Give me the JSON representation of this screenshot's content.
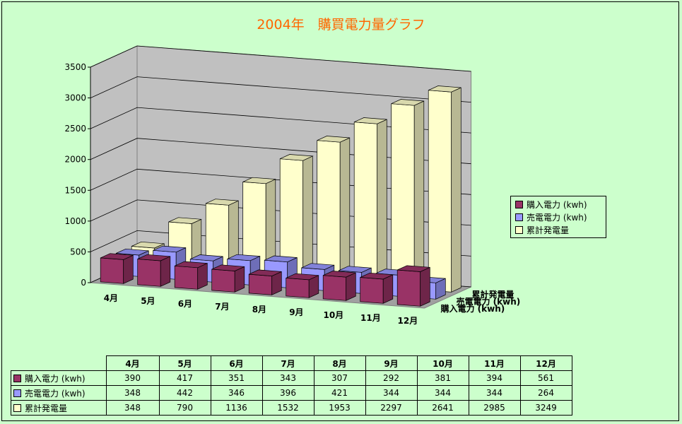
{
  "chart_data": {
    "type": "bar",
    "title": "2004年　購買電力量グラフ",
    "categories": [
      "4月",
      "5月",
      "6月",
      "7月",
      "8月",
      "9月",
      "10月",
      "11月",
      "12月"
    ],
    "series": [
      {
        "name": "購入電力 (kwh)",
        "color": "#993366",
        "values": [
          390,
          417,
          351,
          343,
          307,
          292,
          381,
          394,
          561
        ]
      },
      {
        "name": "売電電力 (kwh)",
        "color": "#9999ff",
        "values": [
          348,
          442,
          346,
          396,
          421,
          344,
          344,
          344,
          264
        ]
      },
      {
        "name": "累計発電量",
        "color": "#ffffcc",
        "values": [
          348,
          790,
          1136,
          1532,
          1953,
          2297,
          2641,
          2985,
          3249
        ]
      }
    ],
    "yticks": [
      0,
      500,
      1000,
      1500,
      2000,
      2500,
      3000,
      3500
    ],
    "ylim": [
      0,
      3500
    ],
    "grid": true,
    "legend_position": "right",
    "depth_axis_labels": [
      "累計発電量",
      "売電電力 (kwh)",
      "購入電力 (kwh)"
    ]
  }
}
